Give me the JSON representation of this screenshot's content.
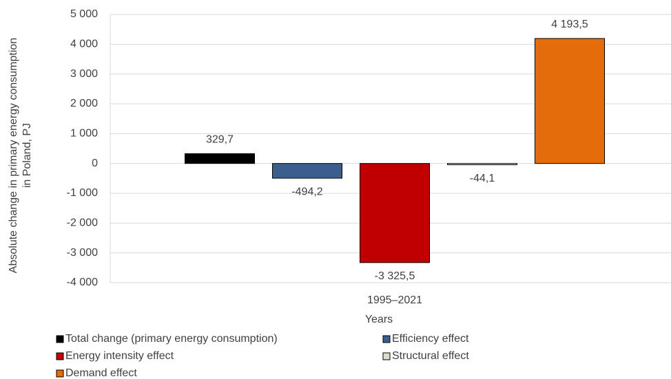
{
  "chart_data": {
    "type": "bar",
    "y_label": [
      "Absolute change in primary energy consumption",
      "in Poland, PJ"
    ],
    "x_label": "Years",
    "categories": [
      "1995–2021"
    ],
    "series": [
      {
        "name": "Total change (primary energy consumption)",
        "color": "#000000",
        "values": [
          329.7
        ],
        "value_labels": [
          "329,7"
        ]
      },
      {
        "name": "Efficiency effect",
        "color": "#3a5f8f",
        "values": [
          -494.2
        ],
        "value_labels": [
          "-494,2"
        ]
      },
      {
        "name": "Energy intensity effect",
        "color": "#c00000",
        "values": [
          -3325.5
        ],
        "value_labels": [
          "-3 325,5"
        ]
      },
      {
        "name": "Structural effect",
        "color": "#dcdccc",
        "values": [
          -44.1
        ],
        "value_labels": [
          "-44,1"
        ]
      },
      {
        "name": "Demand effect",
        "color": "#e46c0a",
        "values": [
          4193.5
        ],
        "value_labels": [
          "4 193,5"
        ]
      }
    ],
    "ylim": [
      -4000,
      5000
    ],
    "yticks": [
      {
        "value": -4000,
        "label": "-4 000"
      },
      {
        "value": -3000,
        "label": "-3 000"
      },
      {
        "value": -2000,
        "label": "-2 000"
      },
      {
        "value": -1000,
        "label": "-1 000"
      },
      0,
      {
        "value": 1000,
        "label": "1 000"
      },
      {
        "value": 2000,
        "label": "2 000"
      },
      {
        "value": 3000,
        "label": "3 000"
      },
      {
        "value": 4000,
        "label": "4 000"
      },
      {
        "value": 5000,
        "label": "5 000"
      }
    ],
    "grid": true
  }
}
